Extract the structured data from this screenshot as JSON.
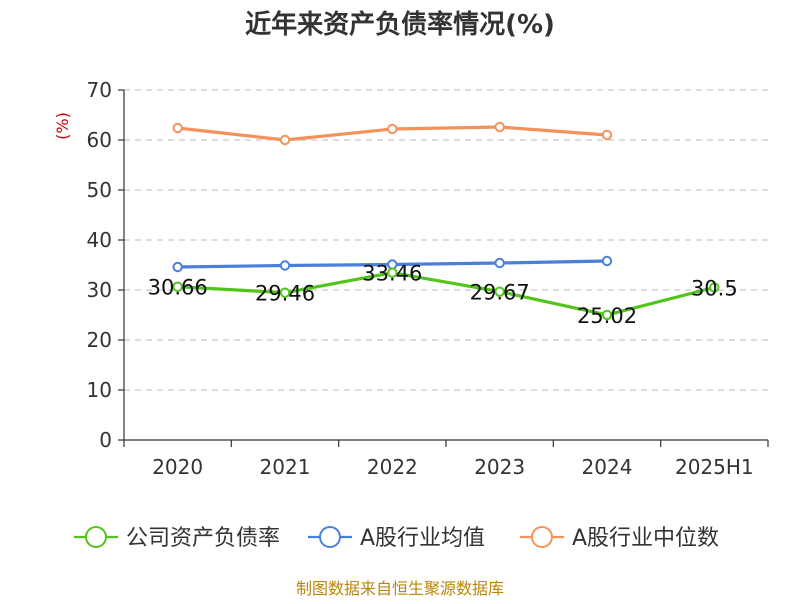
{
  "chart_data": {
    "type": "line",
    "title": "近年来资产负债率情况(%)",
    "ylabel": "(%)",
    "xlabel": "",
    "categories": [
      "2020",
      "2021",
      "2022",
      "2023",
      "2024",
      "2025H1"
    ],
    "ylim": [
      0,
      70
    ],
    "yticks": [
      0,
      10,
      20,
      30,
      40,
      50,
      60,
      70
    ],
    "grid": true,
    "legend_position": "bottom",
    "series": [
      {
        "name": "公司资产负债率",
        "color": "#52c41a",
        "values": [
          30.66,
          29.46,
          33.46,
          29.67,
          25.02,
          30.5
        ],
        "labels": [
          "30.66",
          "29.46",
          "33.46",
          "29.67",
          "25.02",
          "30.5"
        ]
      },
      {
        "name": "A股行业均值",
        "color": "#4a7fdc",
        "values": [
          34.6,
          34.9,
          35.1,
          35.4,
          35.8,
          null
        ]
      },
      {
        "name": "A股行业中位数",
        "color": "#f5915a",
        "values": [
          62.4,
          60.0,
          62.2,
          62.6,
          61.0,
          null
        ]
      }
    ]
  },
  "source": "制图数据来自恒生聚源数据库"
}
